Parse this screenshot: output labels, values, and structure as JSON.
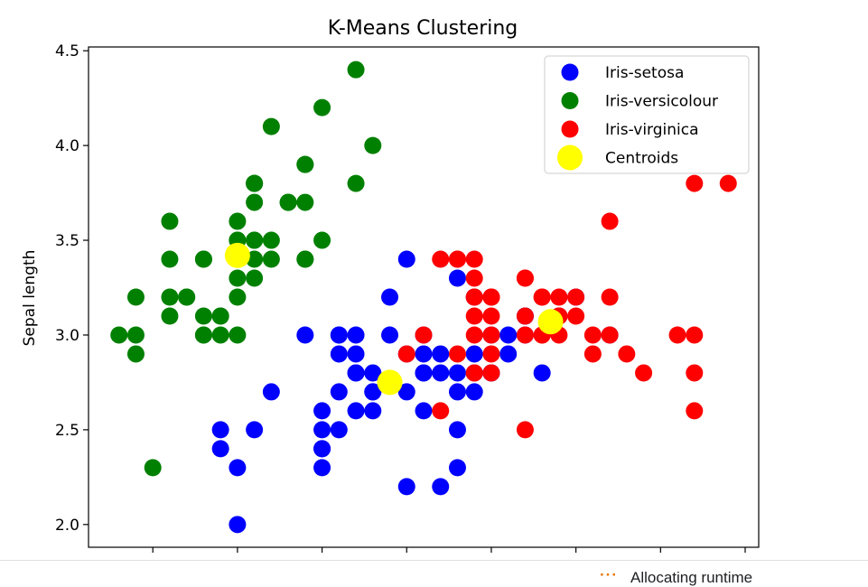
{
  "chart_data": {
    "type": "scatter",
    "title": "K-Means Clustering",
    "xlabel": "",
    "ylabel": "Sepal length",
    "xlim": [
      4.12,
      8.08
    ],
    "ylim": [
      1.88,
      4.52
    ],
    "yticks": [
      "2.0",
      "2.5",
      "3.0",
      "3.5",
      "4.0",
      "4.5"
    ],
    "xtick_values": [
      4.5,
      5.0,
      5.5,
      6.0,
      6.5,
      7.0,
      7.5,
      8.0
    ],
    "grid": false,
    "legend_position": "upper right",
    "series": [
      {
        "name": "Iris-setosa",
        "color": "#0000ff",
        "marker": "circle",
        "points": [
          [
            7.0,
            3.2
          ],
          [
            6.4,
            3.2
          ],
          [
            6.9,
            3.1
          ],
          [
            5.5,
            2.3
          ],
          [
            6.5,
            2.8
          ],
          [
            5.7,
            2.8
          ],
          [
            6.3,
            3.3
          ],
          [
            4.9,
            2.4
          ],
          [
            6.6,
            2.9
          ],
          [
            5.2,
            2.7
          ],
          [
            5.0,
            2.0
          ],
          [
            5.9,
            3.0
          ],
          [
            6.0,
            2.2
          ],
          [
            6.1,
            2.9
          ],
          [
            5.6,
            2.9
          ],
          [
            6.7,
            3.1
          ],
          [
            5.6,
            3.0
          ],
          [
            5.8,
            2.7
          ],
          [
            6.2,
            2.2
          ],
          [
            5.6,
            2.5
          ],
          [
            5.9,
            3.2
          ],
          [
            6.1,
            2.8
          ],
          [
            6.3,
            2.5
          ],
          [
            6.1,
            2.8
          ],
          [
            6.4,
            2.9
          ],
          [
            6.6,
            3.0
          ],
          [
            6.8,
            2.8
          ],
          [
            6.7,
            3.0
          ],
          [
            6.0,
            2.9
          ],
          [
            5.7,
            2.6
          ],
          [
            5.5,
            2.4
          ],
          [
            5.5,
            2.4
          ],
          [
            5.8,
            2.7
          ],
          [
            6.0,
            2.7
          ],
          [
            5.4,
            3.0
          ],
          [
            6.0,
            3.4
          ],
          [
            6.7,
            3.1
          ],
          [
            6.3,
            2.3
          ],
          [
            5.6,
            3.0
          ],
          [
            5.5,
            2.5
          ],
          [
            5.5,
            2.6
          ],
          [
            6.1,
            3.0
          ],
          [
            5.8,
            2.6
          ],
          [
            5.0,
            2.3
          ],
          [
            5.6,
            2.7
          ],
          [
            5.7,
            3.0
          ],
          [
            5.7,
            2.9
          ],
          [
            6.2,
            2.9
          ],
          [
            5.1,
            2.5
          ],
          [
            5.7,
            2.8
          ],
          [
            5.8,
            2.8
          ],
          [
            6.2,
            2.8
          ],
          [
            6.3,
            2.7
          ],
          [
            7.2,
            3.0
          ],
          [
            4.9,
            2.5
          ],
          [
            6.1,
            2.6
          ],
          [
            6.4,
            2.8
          ],
          [
            6.5,
            3.0
          ],
          [
            6.3,
            2.8
          ],
          [
            6.4,
            2.7
          ],
          [
            6.5,
            2.8
          ]
        ]
      },
      {
        "name": "Iris-versicolour",
        "color": "#008000",
        "marker": "circle",
        "points": [
          [
            5.1,
            3.5
          ],
          [
            4.9,
            3.0
          ],
          [
            4.7,
            3.2
          ],
          [
            4.6,
            3.1
          ],
          [
            5.0,
            3.6
          ],
          [
            5.4,
            3.9
          ],
          [
            4.6,
            3.4
          ],
          [
            5.0,
            3.4
          ],
          [
            4.4,
            2.9
          ],
          [
            4.9,
            3.1
          ],
          [
            5.4,
            3.7
          ],
          [
            4.8,
            3.4
          ],
          [
            4.8,
            3.0
          ],
          [
            4.3,
            3.0
          ],
          [
            5.8,
            4.0
          ],
          [
            5.7,
            4.4
          ],
          [
            5.4,
            3.9
          ],
          [
            5.1,
            3.5
          ],
          [
            5.7,
            3.8
          ],
          [
            5.1,
            3.8
          ],
          [
            5.4,
            3.4
          ],
          [
            5.1,
            3.7
          ],
          [
            4.6,
            3.6
          ],
          [
            5.1,
            3.3
          ],
          [
            4.8,
            3.4
          ],
          [
            5.0,
            3.0
          ],
          [
            5.0,
            3.4
          ],
          [
            5.2,
            3.5
          ],
          [
            5.2,
            3.4
          ],
          [
            4.7,
            3.2
          ],
          [
            4.8,
            3.1
          ],
          [
            5.4,
            3.4
          ],
          [
            5.2,
            4.1
          ],
          [
            5.5,
            4.2
          ],
          [
            4.9,
            3.1
          ],
          [
            5.0,
            3.2
          ],
          [
            5.5,
            3.5
          ],
          [
            4.4,
            3.0
          ],
          [
            5.1,
            3.4
          ],
          [
            5.0,
            3.5
          ],
          [
            4.5,
            2.3
          ],
          [
            4.4,
            3.2
          ],
          [
            5.0,
            3.5
          ],
          [
            5.1,
            3.8
          ],
          [
            4.8,
            3.0
          ],
          [
            5.1,
            3.8
          ],
          [
            4.6,
            3.2
          ],
          [
            5.3,
            3.7
          ],
          [
            5.0,
            3.3
          ],
          [
            5.3,
            3.7
          ]
        ]
      },
      {
        "name": "Iris-virginica",
        "color": "#ff0000",
        "marker": "circle",
        "points": [
          [
            7.1,
            3.0
          ],
          [
            7.6,
            3.0
          ],
          [
            7.3,
            2.9
          ],
          [
            6.7,
            2.5
          ],
          [
            7.2,
            3.6
          ],
          [
            6.5,
            3.2
          ],
          [
            6.8,
            3.0
          ],
          [
            6.4,
            3.2
          ],
          [
            7.7,
            3.8
          ],
          [
            7.7,
            2.6
          ],
          [
            6.9,
            3.2
          ],
          [
            7.7,
            2.8
          ],
          [
            6.7,
            3.3
          ],
          [
            7.2,
            3.2
          ],
          [
            7.4,
            2.8
          ],
          [
            7.9,
            3.8
          ],
          [
            7.7,
            3.0
          ],
          [
            6.3,
            3.4
          ],
          [
            6.9,
            3.1
          ],
          [
            6.7,
            3.1
          ],
          [
            6.8,
            3.2
          ],
          [
            6.7,
            3.0
          ],
          [
            6.5,
            3.0
          ],
          [
            6.2,
            3.4
          ],
          [
            6.4,
            3.1
          ],
          [
            6.9,
            3.1
          ],
          [
            6.7,
            3.3
          ],
          [
            6.4,
            3.2
          ],
          [
            7.2,
            3.0
          ],
          [
            6.5,
            3.2
          ],
          [
            6.4,
            3.3
          ],
          [
            6.3,
            2.9
          ],
          [
            6.2,
            2.6
          ],
          [
            6.5,
            3.2
          ],
          [
            6.4,
            2.8
          ],
          [
            6.5,
            2.9
          ],
          [
            7.1,
            2.9
          ],
          [
            6.3,
            3.4
          ],
          [
            6.5,
            3.1
          ],
          [
            7.0,
            3.1
          ],
          [
            6.8,
            3.0
          ],
          [
            6.4,
            3.4
          ],
          [
            6.4,
            2.8
          ],
          [
            6.1,
            3.0
          ],
          [
            6.0,
            2.9
          ],
          [
            6.5,
            2.8
          ],
          [
            6.4,
            3.0
          ],
          [
            7.0,
            3.2
          ],
          [
            6.9,
            3.0
          ],
          [
            6.8,
            3.2
          ]
        ]
      },
      {
        "name": "Centroids",
        "color": "#ffff00",
        "marker": "circle-large",
        "points": [
          [
            5.9,
            2.75
          ],
          [
            5.0,
            3.42
          ],
          [
            6.85,
            3.07
          ]
        ]
      }
    ]
  },
  "status": {
    "dots": "···",
    "text": "Allocating runtime"
  }
}
